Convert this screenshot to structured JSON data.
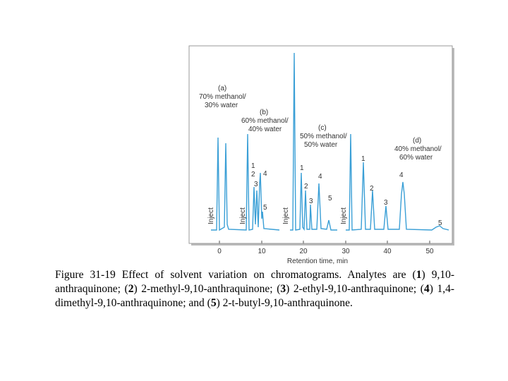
{
  "figure": {
    "panels": [
      {
        "label": "(a)",
        "conditions": [
          "70% methanol/",
          "30% water"
        ],
        "inject": "Inject",
        "peaks": []
      },
      {
        "label": "(b)",
        "conditions": [
          "60% methanol/",
          "40% water"
        ],
        "inject": "Inject",
        "peaks": [
          "1",
          "2",
          "3",
          "4",
          "5"
        ]
      },
      {
        "label": "(c)",
        "conditions": [
          "50% methanol/",
          "50% water"
        ],
        "inject": "Inject",
        "peaks": [
          "1",
          "2",
          "3",
          "4",
          "5"
        ]
      },
      {
        "label": "(d)",
        "conditions": [
          "40% methanol/",
          "60% water"
        ],
        "inject": "Inject",
        "peaks": [
          "1",
          "2",
          "3",
          "4",
          "5"
        ]
      }
    ],
    "x_axis": {
      "ticks": [
        "0",
        "10",
        "20",
        "30",
        "40",
        "50"
      ],
      "label": "Retention time, min"
    }
  },
  "caption": {
    "parts": [
      "Figure 31-19 Effect of solvent variation on chromatograms. Analytes are (",
      "1",
      ") 9,10-anthraquinone; (",
      "2",
      ") 2-methyl-9,10-anthraquinone; (",
      "3",
      ") 2-ethyl-9,10-anthraquinone; (",
      "4",
      ") 1,4-dimethyl-9,10-anthraquinone; and (",
      "5",
      ") 2-t-butyl-9,10-anthraquinone."
    ]
  }
}
